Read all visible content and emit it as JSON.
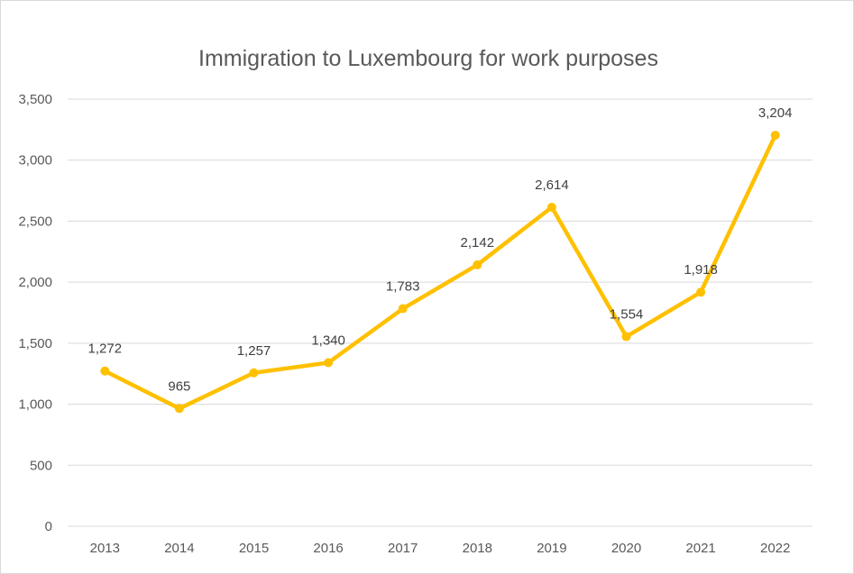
{
  "chart_data": {
    "type": "line",
    "title": "Immigration to Luxembourg for work purposes",
    "xlabel": "",
    "ylabel": "",
    "categories": [
      "2013",
      "2014",
      "2015",
      "2016",
      "2017",
      "2018",
      "2019",
      "2020",
      "2021",
      "2022"
    ],
    "series": [
      {
        "values": [
          1272,
          965,
          1257,
          1340,
          1783,
          2142,
          2614,
          1554,
          1918,
          3204
        ],
        "data_labels": [
          "1,272",
          "965",
          "1,257",
          "1,340",
          "1,783",
          "2,142",
          "2,614",
          "1,554",
          "1,918",
          "3,204"
        ],
        "color": "#FFC000"
      }
    ],
    "ylim": [
      0,
      3500
    ],
    "yticks": [
      0,
      500,
      1000,
      1500,
      2000,
      2500,
      3000,
      3500
    ],
    "ytick_labels": [
      "0",
      "500",
      "1,000",
      "1,500",
      "2,000",
      "2,500",
      "3,000",
      "3,500"
    ],
    "grid": true,
    "legend": "none",
    "colors": {
      "line": "#FFC000",
      "grid": "#d9d9d9",
      "axis_text": "#595959",
      "label_text": "#404040"
    }
  }
}
